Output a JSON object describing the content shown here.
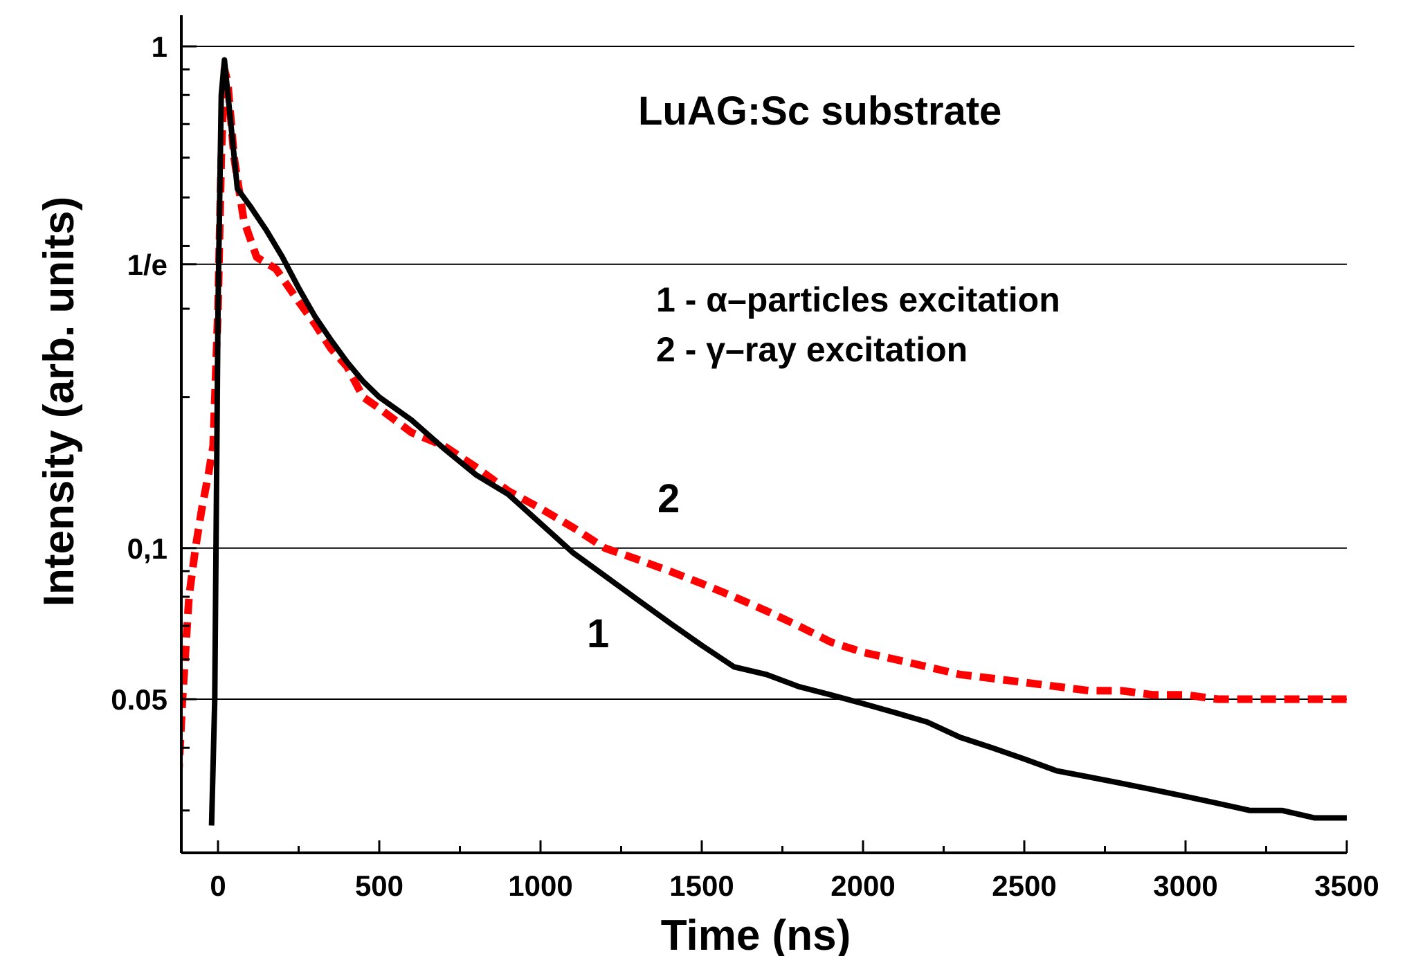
{
  "chart_data": {
    "type": "line",
    "title": "LuAG:Sc substrate",
    "xlabel": "Time (ns)",
    "ylabel": "Intensity (arb. units)",
    "xlim": [
      -130,
      3500
    ],
    "ylim": [
      0.028,
      1.0
    ],
    "y_scale": "log",
    "grid": "horizontal lines at labeled y ticks",
    "x_ticks": [
      0,
      500,
      1000,
      1500,
      2000,
      2500,
      3000,
      3500
    ],
    "x_tick_labels": [
      "0",
      "500",
      "1000",
      "1500",
      "2000",
      "2500",
      "3000",
      "3500"
    ],
    "y_ticks": [
      {
        "value": 1.0,
        "label": "1"
      },
      {
        "value": 0.3679,
        "label": "1/e"
      },
      {
        "value": 0.1,
        "label": "0,1"
      },
      {
        "value": 0.05,
        "label": "0.05"
      }
    ],
    "legend_lines": [
      "1 - α–particles excitation",
      "2 - γ–ray excitation"
    ],
    "curve_labels": [
      "1",
      "2"
    ],
    "series": [
      {
        "id": "1",
        "color": "#000000",
        "style": "solid",
        "x": [
          -20,
          -10,
          0,
          10,
          20,
          40,
          60,
          100,
          150,
          200,
          250,
          300,
          350,
          400,
          450,
          500,
          600,
          700,
          800,
          900,
          1000,
          1100,
          1200,
          1300,
          1400,
          1500,
          1600,
          1700,
          1800,
          1900,
          2000,
          2100,
          2200,
          2300,
          2400,
          2500,
          2600,
          2700,
          2800,
          2900,
          3000,
          3100,
          3200,
          3300,
          3400,
          3500
        ],
        "y": [
          0.028,
          0.05,
          0.3,
          0.8,
          0.94,
          0.7,
          0.52,
          0.48,
          0.43,
          0.38,
          0.33,
          0.29,
          0.26,
          0.235,
          0.215,
          0.2,
          0.18,
          0.158,
          0.14,
          0.128,
          0.112,
          0.098,
          0.088,
          0.079,
          0.071,
          0.064,
          0.058,
          0.056,
          0.053,
          0.051,
          0.049,
          0.047,
          0.045,
          0.042,
          0.04,
          0.038,
          0.036,
          0.035,
          0.034,
          0.033,
          0.032,
          0.031,
          0.03,
          0.03,
          0.029,
          0.029
        ]
      },
      {
        "id": "2",
        "color": "#ff0000",
        "style": "dashed",
        "x": [
          -130,
          -110,
          -90,
          -70,
          -50,
          -30,
          -15,
          0,
          10,
          20,
          30,
          50,
          80,
          120,
          180,
          250,
          300,
          350,
          400,
          450,
          500,
          600,
          700,
          800,
          900,
          1000,
          1100,
          1200,
          1300,
          1400,
          1500,
          1600,
          1700,
          1800,
          1900,
          2000,
          2100,
          2200,
          2300,
          2400,
          2500,
          2600,
          2700,
          2800,
          2900,
          3000,
          3100,
          3200,
          3300,
          3400,
          3500
        ],
        "y": [
          0.028,
          0.05,
          0.08,
          0.1,
          0.12,
          0.14,
          0.16,
          0.3,
          0.6,
          0.9,
          0.85,
          0.6,
          0.45,
          0.38,
          0.36,
          0.31,
          0.28,
          0.25,
          0.23,
          0.2,
          0.19,
          0.17,
          0.16,
          0.145,
          0.13,
          0.12,
          0.11,
          0.1,
          0.095,
          0.09,
          0.085,
          0.08,
          0.075,
          0.07,
          0.065,
          0.062,
          0.06,
          0.058,
          0.056,
          0.055,
          0.054,
          0.053,
          0.052,
          0.052,
          0.051,
          0.051,
          0.05,
          0.05,
          0.05,
          0.05,
          0.05
        ]
      }
    ]
  }
}
